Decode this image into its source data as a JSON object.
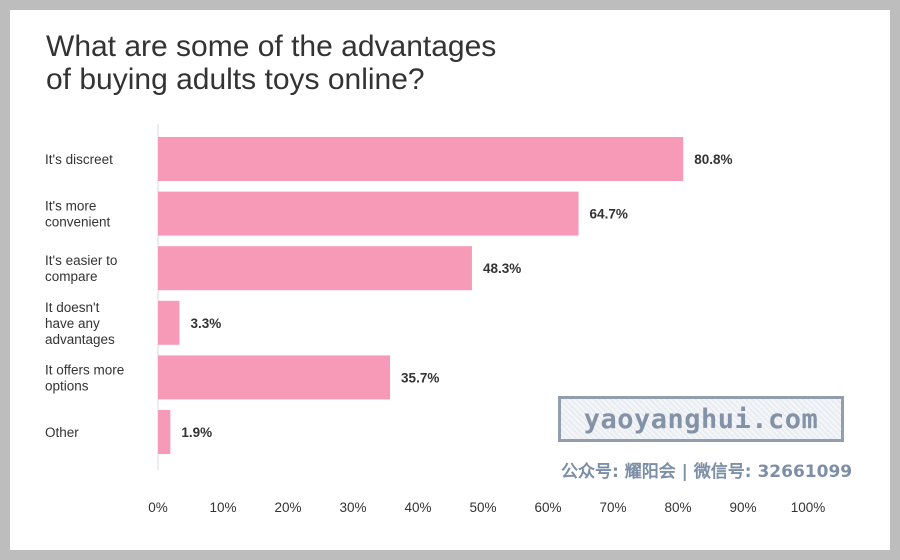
{
  "chart_data": {
    "type": "bar",
    "orientation": "horizontal",
    "title": "What are some of the advantages\nof buying adults toys online?",
    "categories": [
      "It's discreet",
      "It's more convenient",
      "It's easier to compare",
      "It doesn't have any advantages",
      "It offers more options",
      "Other"
    ],
    "category_lines": [
      [
        "It's discreet"
      ],
      [
        "It's more",
        "convenient"
      ],
      [
        "It's easier to",
        "compare"
      ],
      [
        "It doesn't",
        "have any",
        "advantages"
      ],
      [
        "It offers more",
        "options"
      ],
      [
        "Other"
      ]
    ],
    "values": [
      80.8,
      64.7,
      48.3,
      3.3,
      35.7,
      1.9
    ],
    "value_labels": [
      "80.8%",
      "64.7%",
      "48.3%",
      "3.3%",
      "35.7%",
      "1.9%"
    ],
    "xlim": [
      0,
      100
    ],
    "xticks": [
      "0%",
      "10%",
      "20%",
      "30%",
      "40%",
      "50%",
      "60%",
      "70%",
      "80%",
      "90%",
      "100%"
    ],
    "bar_color": "#f79ab7",
    "grid": false
  },
  "watermark": {
    "text": "yaoyanghui.com",
    "wechat": "公众号: 耀阳会 | 微信号: 32661099"
  }
}
